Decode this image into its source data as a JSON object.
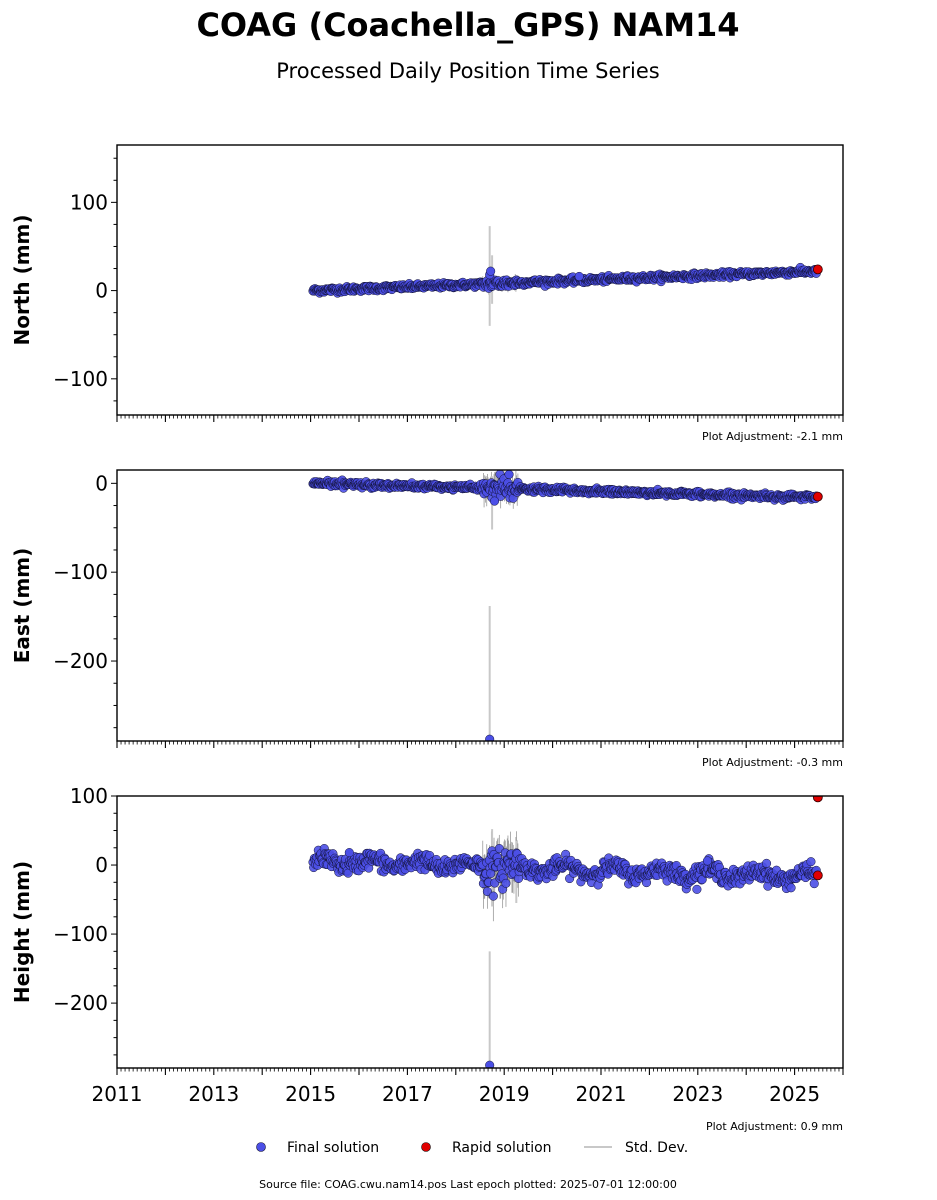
{
  "header": {
    "title": "COAG (Coachella_GPS) NAM14",
    "subtitle": "Processed Daily Position Time Series"
  },
  "footer": {
    "source": "Source file: COAG.cwu.nam14.pos  Last epoch plotted: 2025-07-01 12:00:00"
  },
  "legend": {
    "final_label": "Final solution",
    "rapid_label": "Rapid solution",
    "std_label": "Std. Dev."
  },
  "colors": {
    "final": "#4b4fe6",
    "final_edge": "#111133",
    "rapid": "#e00000",
    "std": "#c8c8c8",
    "axis": "#000000"
  },
  "chart_data": [
    {
      "type": "scatter",
      "panel": "north",
      "ylabel": "North (mm)",
      "adjustment": "Plot Adjustment: -2.1 mm",
      "xlim": [
        2011,
        2026
      ],
      "ylim": [
        -141,
        165
      ],
      "yticks": [
        -100,
        0,
        100
      ],
      "ytick_labels": [
        "−100",
        "0",
        "100"
      ],
      "xticks": [
        2011,
        2013,
        2015,
        2017,
        2019,
        2021,
        2023,
        2025
      ],
      "xtick_labels": [],
      "series_start": 2015.05,
      "series_end": 2025.45,
      "trend": [
        [
          2015.05,
          0
        ],
        [
          2025.45,
          22
        ]
      ],
      "noise_mm": 1.5,
      "disturbance": {
        "x": [
          2018.55,
          2019.3
        ],
        "noise_mm": 3.0
      },
      "outliers": [
        [
          2018.7,
          18
        ],
        [
          2018.72,
          22
        ],
        [
          2020.55,
          16
        ]
      ],
      "std_spikes": [
        [
          2018.7,
          -40,
          73
        ],
        [
          2018.75,
          -15,
          40
        ]
      ],
      "rapid_points": [
        [
          2025.48,
          24
        ]
      ]
    },
    {
      "type": "scatter",
      "panel": "east",
      "ylabel": "East (mm)",
      "adjustment": "Plot Adjustment: -0.3 mm",
      "xlim": [
        2011,
        2026
      ],
      "ylim": [
        -290,
        15
      ],
      "yticks": [
        -200,
        -100,
        0
      ],
      "ytick_labels": [
        "−200",
        "−100",
        "0"
      ],
      "xticks": [
        2011,
        2013,
        2015,
        2017,
        2019,
        2021,
        2023,
        2025
      ],
      "xtick_labels": [],
      "series_start": 2015.05,
      "series_end": 2025.45,
      "trend": [
        [
          2015.05,
          0
        ],
        [
          2025.45,
          -16
        ]
      ],
      "noise_mm": 1.5,
      "disturbance": {
        "x": [
          2018.55,
          2019.3
        ],
        "noise_mm": 6.0
      },
      "outliers": [
        [
          2018.7,
          -288
        ],
        [
          2019.1,
          10
        ],
        [
          2018.8,
          -20
        ]
      ],
      "std_spikes": [
        [
          2018.7,
          -288,
          -138
        ],
        [
          2018.75,
          -52,
          8
        ]
      ],
      "rapid_points": [
        [
          2025.48,
          -15
        ]
      ]
    },
    {
      "type": "scatter",
      "panel": "height",
      "ylabel": "Height (mm)",
      "adjustment": "Plot Adjustment: 0.9 mm",
      "xlim": [
        2011,
        2026
      ],
      "ylim": [
        -294,
        100
      ],
      "yticks": [
        -200,
        -100,
        0,
        100
      ],
      "ytick_labels": [
        "−200",
        "−100",
        "0",
        "100"
      ],
      "xticks": [
        2011,
        2013,
        2015,
        2017,
        2019,
        2021,
        2023,
        2025
      ],
      "xtick_labels": [
        "2011",
        "2013",
        "2015",
        "2017",
        "2019",
        "2021",
        "2023",
        "2025"
      ],
      "series_start": 2015.05,
      "series_end": 2025.45,
      "trend": [
        [
          2015.05,
          5
        ],
        [
          2017.0,
          2
        ],
        [
          2019.0,
          -3
        ],
        [
          2021.0,
          -8
        ],
        [
          2023.0,
          -12
        ],
        [
          2025.45,
          -17
        ]
      ],
      "noise_mm": 6.0,
      "disturbance": {
        "x": [
          2018.55,
          2019.3
        ],
        "noise_mm": 14.0
      },
      "outliers": [
        [
          2018.7,
          -290
        ],
        [
          2015.8,
          18
        ],
        [
          2023.2,
          6
        ]
      ],
      "std_spikes": [
        [
          2018.7,
          -290,
          -125
        ],
        [
          2018.75,
          -60,
          52
        ],
        [
          2019.25,
          -55,
          35
        ]
      ],
      "rapid_points": [
        [
          2025.48,
          -15
        ],
        [
          2025.48,
          98
        ]
      ]
    }
  ]
}
